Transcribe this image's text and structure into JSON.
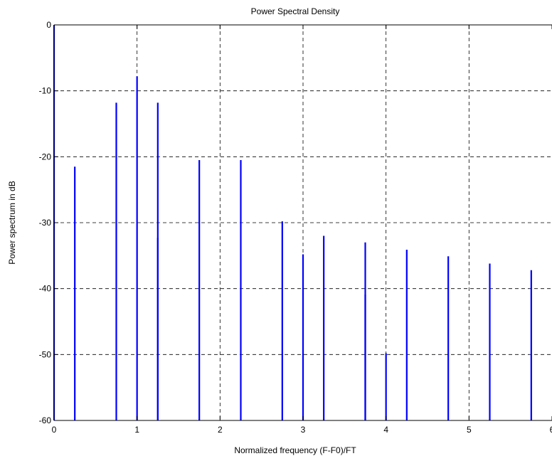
{
  "chart_data": {
    "type": "bar",
    "title": "Power Spectral Density",
    "xlabel": "Normalized frequency (F-F0)/FT",
    "ylabel": "Power spectrum in dB",
    "xlim": [
      0,
      6
    ],
    "ylim": [
      -60,
      0
    ],
    "xticks": [
      0,
      1,
      2,
      3,
      4,
      5,
      6
    ],
    "yticks": [
      0,
      -10,
      -20,
      -30,
      -40,
      -50,
      -60
    ],
    "xtick_labels": [
      "0",
      "1",
      "2",
      "3",
      "4",
      "5",
      "6"
    ],
    "ytick_labels": [
      "0",
      "-10",
      "-20",
      "-30",
      "-40",
      "-50",
      "-60"
    ],
    "grid": true,
    "series_color": "#0000ff",
    "baseline": -60,
    "series": [
      {
        "x": [
          0,
          0.25,
          0.75,
          1,
          1.25,
          1.25,
          1.75,
          2.25,
          2.75,
          3,
          3.25,
          3.75,
          3.75,
          4,
          4.25,
          4.75,
          5.25,
          5.75
        ],
        "values": [
          0,
          -21.5,
          -11.8,
          -7.8,
          -11.8,
          -32.3,
          -20.5,
          -20.5,
          -29.8,
          -34.8,
          -32.0,
          -33.0,
          -40.9,
          -49.8,
          -34.1,
          -35.1,
          -36.2,
          -37.2
        ]
      }
    ]
  }
}
